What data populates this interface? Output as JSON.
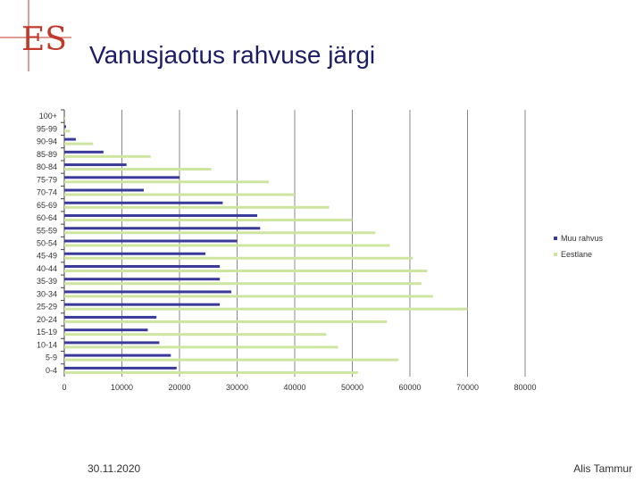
{
  "header": {
    "title": "Vanusjaotus rahvuse järgi"
  },
  "footer": {
    "date": "30.11.2020",
    "author": "Alis Tammur"
  },
  "colors": {
    "series_muu": "#3a3a9a",
    "series_eestlane": "#cde5a0",
    "grid": "#888888",
    "title": "#1c1c66",
    "logo": "#c0392b"
  },
  "chart_data": {
    "type": "bar",
    "orientation": "horizontal",
    "categories": [
      "100+",
      "95-99",
      "90-94",
      "85-89",
      "80-84",
      "75-79",
      "70-74",
      "65-69",
      "60-64",
      "55-59",
      "50-54",
      "45-49",
      "40-44",
      "35-39",
      "30-34",
      "25-29",
      "20-24",
      "15-19",
      "10-14",
      "5-9",
      "0-4"
    ],
    "series": [
      {
        "name": "Muu rahvus",
        "values": [
          50,
          300,
          2000,
          6800,
          10800,
          20000,
          13800,
          27500,
          33500,
          34000,
          30000,
          24500,
          27000,
          27000,
          29000,
          27000,
          16000,
          14500,
          16500,
          18500,
          19500
        ]
      },
      {
        "name": "Eestlane",
        "values": [
          200,
          1000,
          5000,
          15000,
          25500,
          35500,
          40000,
          46000,
          50000,
          54000,
          56500,
          60500,
          63000,
          62000,
          64000,
          70000,
          56000,
          45500,
          47500,
          58000,
          51000
        ]
      }
    ],
    "xticks": [
      "0",
      "10000",
      "20000",
      "30000",
      "40000",
      "50000",
      "60000",
      "70000",
      "80000"
    ],
    "xlim": [
      0,
      80000
    ],
    "grid": true,
    "legend": "right"
  }
}
